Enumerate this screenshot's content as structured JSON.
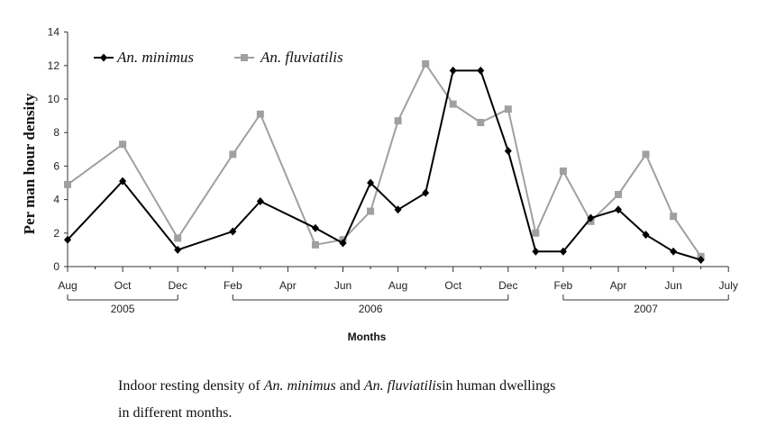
{
  "chart_data": {
    "type": "line",
    "ylabel": "Per man hour density",
    "xlabel": "Months",
    "ylim": [
      0,
      14
    ],
    "y_ticks": [
      "0",
      "2",
      "4",
      "6",
      "8",
      "10",
      "12",
      "14"
    ],
    "x_tick_labels": [
      "Aug",
      "Oct",
      "Dec",
      "Feb",
      "Apr",
      "Jun",
      "Aug",
      "Oct",
      "Dec",
      "Feb",
      "Apr",
      "Jun",
      "July"
    ],
    "year_groups": [
      {
        "label": "2005",
        "from_month": 0,
        "to_month": 4
      },
      {
        "label": "2006",
        "from_month": 6,
        "to_month": 16
      },
      {
        "label": "2007",
        "from_month": 18,
        "to_month": 24
      }
    ],
    "legend_position": "top-left",
    "series": [
      {
        "name": "An. minimus",
        "color": "#000000",
        "marker": "diamond",
        "x": [
          0,
          2,
          4,
          6,
          7,
          9,
          10,
          11,
          12,
          13,
          14,
          15,
          16,
          17,
          18,
          19,
          20,
          21,
          22,
          23
        ],
        "values": [
          1.6,
          5.1,
          1.0,
          2.1,
          3.9,
          2.3,
          1.4,
          5.0,
          3.4,
          4.4,
          11.7,
          11.7,
          6.9,
          0.9,
          0.9,
          2.9,
          3.4,
          1.9,
          0.9,
          0.4
        ]
      },
      {
        "name": "An. fluviatilis",
        "color": "#a0a0a0",
        "marker": "square",
        "x": [
          0,
          2,
          4,
          6,
          7,
          9,
          10,
          11,
          12,
          13,
          14,
          15,
          16,
          17,
          18,
          19,
          20,
          21,
          22,
          23
        ],
        "values": [
          4.9,
          7.3,
          1.7,
          6.7,
          9.1,
          1.3,
          1.6,
          3.3,
          8.7,
          12.1,
          9.7,
          8.6,
          9.4,
          2.0,
          5.7,
          2.7,
          4.3,
          6.7,
          3.0,
          0.6
        ]
      }
    ]
  },
  "caption": {
    "p1": "Indoor resting density of ",
    "sp1": "An. minimus",
    "p2": " and ",
    "sp2": "An. fluviatilis",
    "p3": "in human dwellings",
    "p4": "in different months."
  }
}
